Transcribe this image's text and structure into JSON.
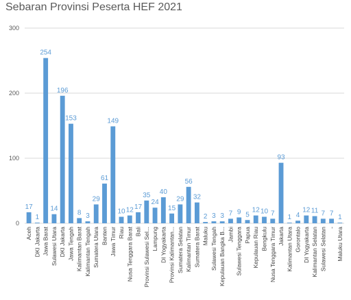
{
  "chart_data": {
    "type": "bar",
    "title": "Sebaran Provinsi Peserta HEF 2021",
    "bar_color": "#5b9bd5",
    "label_color": "#5b9bd5",
    "ylim": [
      0,
      300
    ],
    "yticks": [
      0,
      100,
      200,
      300
    ],
    "grid": true,
    "categories": [
      "Aceh",
      "DKI Jakarta",
      "Jawa Barat",
      "Sulawesi Utara",
      "DKI Jakarta",
      "Jawa Tengah",
      "Kalimantan Barat",
      "Kalimantan Tengah",
      "Sumatera Utara",
      "Banten",
      "Jawa Timur",
      "Riau",
      "Nusa Tenggara Barat",
      "Bali",
      "Provinsi Sulawesi Sel...",
      "Lampung",
      "DI Yogyakarta",
      "Provinsi Kalimantan...",
      "Sumatera Selatan",
      "Kalimantan Timur",
      "Sumatera Barat",
      "Maluku",
      "Sulawesi Tengah",
      "Kepulauan Bangka B...",
      "Jambi",
      "Sulawesi Tenggara",
      "Papua",
      "Kepulauan Riau",
      "Bengkulu",
      "Nusa Tenggara Timur",
      "Jakarta",
      "Kalimantan Utara",
      "Gorontalo",
      "DI Yogyakarta",
      "Kalimantan Selatan",
      "Sulawesi Selatan",
      "-",
      "Maluku Utara"
    ],
    "values": [
      17,
      1,
      254,
      14,
      196,
      153,
      8,
      3,
      29,
      61,
      149,
      10,
      12,
      17,
      35,
      24,
      40,
      15,
      29,
      56,
      32,
      2,
      3,
      3,
      7,
      9,
      5,
      12,
      10,
      7,
      93,
      1,
      4,
      12,
      11,
      7,
      7,
      1
    ]
  }
}
